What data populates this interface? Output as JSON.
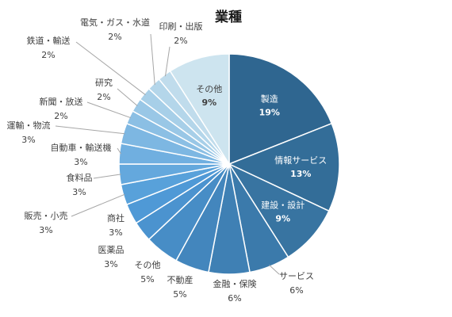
{
  "chart_data": {
    "type": "pie",
    "title": "業種",
    "start_angle_deg": 0,
    "direction": "clockwise",
    "slices": [
      {
        "label": "製造",
        "value": 19,
        "value_text": "19%",
        "color": "#2f6690",
        "label_pos": "inside"
      },
      {
        "label": "情報サービス",
        "value": 13,
        "value_text": "13%",
        "color": "#336d98",
        "label_pos": "inside"
      },
      {
        "label": "建設・設計",
        "value": 9,
        "value_text": "9%",
        "color": "#3874a1",
        "label_pos": "inside"
      },
      {
        "label": "サービス",
        "value": 6,
        "value_text": "6%",
        "color": "#3b7aab",
        "label_pos": "outside"
      },
      {
        "label": "金融・保険",
        "value": 6,
        "value_text": "6%",
        "color": "#3f80b4",
        "label_pos": "outside"
      },
      {
        "label": "不動産",
        "value": 5,
        "value_text": "5%",
        "color": "#4386bd",
        "label_pos": "outside"
      },
      {
        "label": "その他",
        "value": 5,
        "value_text": "5%",
        "color": "#478dc6",
        "label_pos": "outside"
      },
      {
        "label": "医薬品",
        "value": 3,
        "value_text": "3%",
        "color": "#4b93cf",
        "label_pos": "outside"
      },
      {
        "label": "商社",
        "value": 3,
        "value_text": "3%",
        "color": "#4f99d6",
        "label_pos": "outside"
      },
      {
        "label": "販売・小売",
        "value": 3,
        "value_text": "3%",
        "color": "#58a1da",
        "label_pos": "outside"
      },
      {
        "label": "食料品",
        "value": 3,
        "value_text": "3%",
        "color": "#64a8dd",
        "label_pos": "outside"
      },
      {
        "label": "自動車・輸送機",
        "value": 3,
        "value_text": "3%",
        "color": "#70afe0",
        "label_pos": "outside"
      },
      {
        "label": "運輸・物流",
        "value": 3,
        "value_text": "3%",
        "color": "#7db7e2",
        "label_pos": "outside"
      },
      {
        "label": "新聞・放送",
        "value": 2,
        "value_text": "2%",
        "color": "#8bbfe4",
        "label_pos": "outside"
      },
      {
        "label": "研究",
        "value": 2,
        "value_text": "2%",
        "color": "#99c7e6",
        "label_pos": "outside"
      },
      {
        "label": "鉄道・輸送",
        "value": 2,
        "value_text": "2%",
        "color": "#a7cfe8",
        "label_pos": "outside"
      },
      {
        "label": "電気・ガス・水道",
        "value": 2,
        "value_text": "2%",
        "color": "#b4d6ea",
        "label_pos": "outside"
      },
      {
        "label": "印刷・出版",
        "value": 2,
        "value_text": "2%",
        "color": "#c0dcec",
        "label_pos": "outside"
      },
      {
        "label": "その他",
        "value": 9,
        "value_text": "9%",
        "color": "#cde4ef",
        "label_pos": "inside"
      }
    ],
    "legend": "none"
  }
}
